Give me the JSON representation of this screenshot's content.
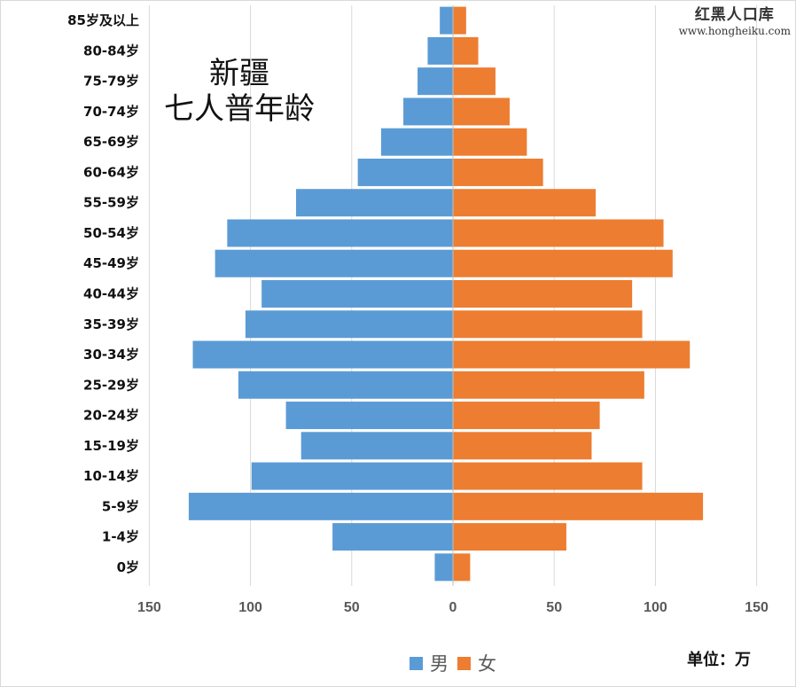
{
  "chart_data": {
    "type": "bar",
    "orientation": "horizontal-pyramid",
    "title_line1": "新疆",
    "title_line2": "七人普年龄",
    "categories": [
      "85岁及以上",
      "80-84岁",
      "75-79岁",
      "70-74岁",
      "65-69岁",
      "60-64岁",
      "55-59岁",
      "50-54岁",
      "45-49岁",
      "40-44岁",
      "35-39岁",
      "30-34岁",
      "25-29岁",
      "20-24岁",
      "15-19岁",
      "10-14岁",
      "5-9岁",
      "1-4岁",
      "0岁"
    ],
    "series": [
      {
        "name": "男",
        "color": "#5B9BD5",
        "side": "left",
        "values": [
          6.5,
          12.5,
          17.5,
          24.5,
          35.5,
          47,
          77.5,
          111.5,
          117.5,
          94.5,
          102.5,
          128.5,
          106,
          82.5,
          75,
          99.5,
          130.5,
          59.5,
          9
        ]
      },
      {
        "name": "女",
        "color": "#ED7D31",
        "side": "right",
        "values": [
          6.5,
          12.5,
          21,
          28,
          36.5,
          44.5,
          70.5,
          104,
          108.5,
          88.5,
          93.5,
          117,
          94.5,
          72.5,
          68.5,
          93.5,
          123.5,
          56,
          8.5
        ]
      }
    ],
    "xlim": [
      -150,
      150
    ],
    "x_tick_values": [
      -150,
      -100,
      -50,
      0,
      50,
      100,
      150
    ],
    "x_tick_labels": [
      "150",
      "100",
      "50",
      "0",
      "50",
      "100",
      "150"
    ],
    "grid": "vertical",
    "legend_position": "bottom",
    "unit_label": "单位：万"
  },
  "watermark": {
    "name": "红黑人口库",
    "url": "www.hongheiku.com"
  },
  "colors": {
    "male": "#5B9BD5",
    "female": "#ED7D31",
    "grid": "#D9D9D9"
  }
}
